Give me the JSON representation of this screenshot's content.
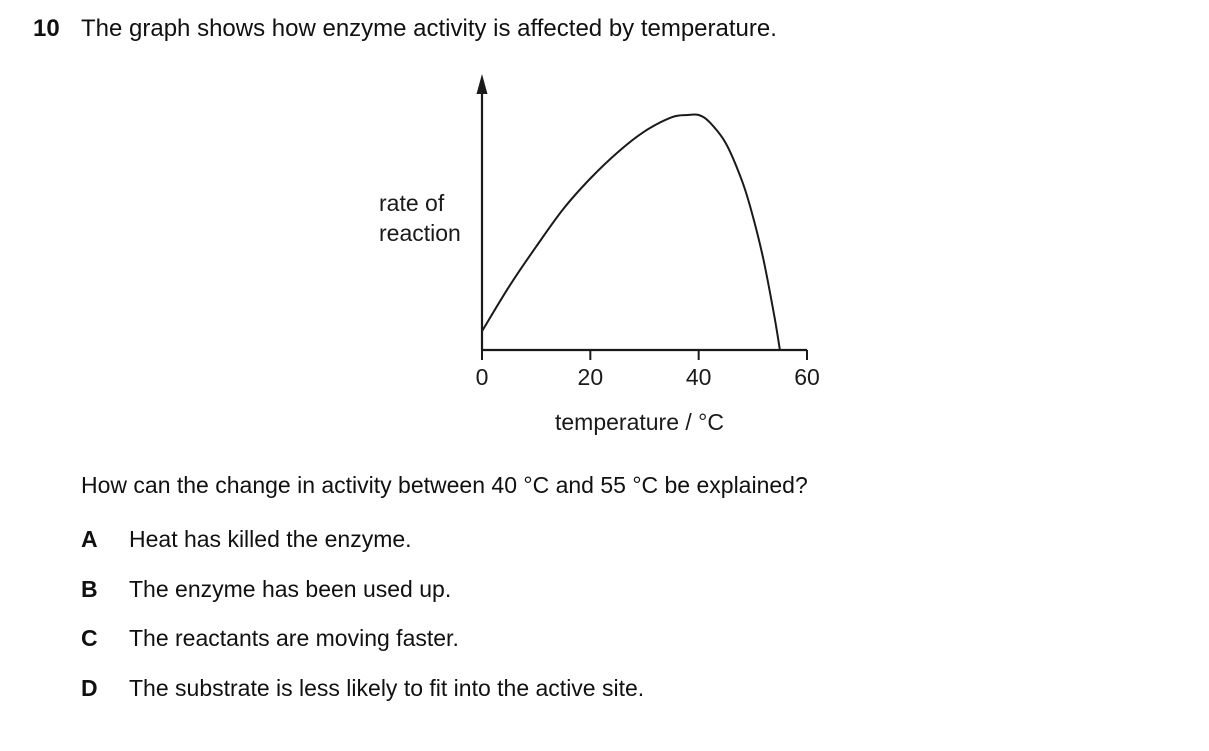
{
  "question": {
    "number": "10",
    "stem": "The graph shows how enzyme activity is affected by temperature.",
    "prompt": "How can the change in activity between 40 °C and 55 °C be explained?",
    "options": [
      {
        "letter": "A",
        "text": "Heat has killed the enzyme."
      },
      {
        "letter": "B",
        "text": "The enzyme has been used up."
      },
      {
        "letter": "C",
        "text": "The reactants are moving faster."
      },
      {
        "letter": "D",
        "text": "The substrate is less likely to fit into the active site."
      }
    ]
  },
  "chart_data": {
    "type": "line",
    "ylabel_lines": [
      "rate of",
      "reaction"
    ],
    "xlabel": "temperature / °C",
    "x_ticks": [
      0,
      20,
      40,
      60
    ],
    "xlim": [
      0,
      60
    ],
    "y_values_shown": false,
    "series": [
      {
        "x": [
          0,
          5,
          10,
          15,
          20,
          25,
          30,
          35,
          38,
          40,
          42,
          45,
          48,
          50,
          52,
          54,
          55
        ],
        "y": [
          0.08,
          0.27,
          0.44,
          0.6,
          0.73,
          0.84,
          0.93,
          0.99,
          1.0,
          1.0,
          0.97,
          0.88,
          0.72,
          0.57,
          0.38,
          0.14,
          0.0
        ]
      }
    ],
    "line_color": "#1a1a1a",
    "grid": false
  }
}
